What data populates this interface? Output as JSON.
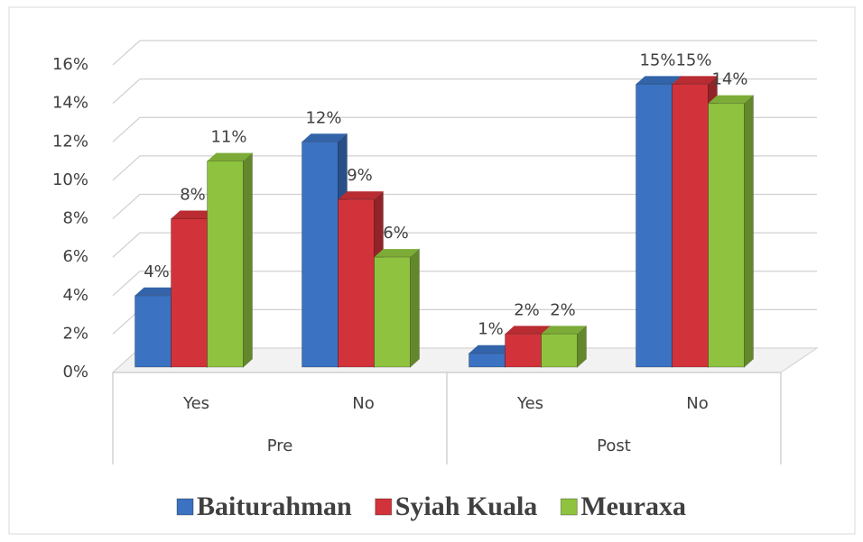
{
  "chart_data": {
    "type": "bar3d",
    "categories": [
      "Yes",
      "No",
      "Yes",
      "No"
    ],
    "groups": [
      "Pre",
      "Post"
    ],
    "series": [
      {
        "name": "Baiturahman",
        "color": "#3b72c2",
        "values": [
          4,
          12,
          1,
          15
        ],
        "value_labels": [
          "4%",
          "12%",
          "1%",
          "15%"
        ]
      },
      {
        "name": "Syiah Kuala",
        "color": "#d2333a",
        "values": [
          8,
          9,
          2,
          15
        ],
        "value_labels": [
          "8%",
          "9%",
          "2%",
          "15%"
        ]
      },
      {
        "name": "Meuraxa",
        "color": "#8fc33f",
        "values": [
          11,
          6,
          2,
          14
        ],
        "value_labels": [
          "11%",
          "6%",
          "2%",
          "14%"
        ]
      }
    ],
    "ylim": [
      0,
      16
    ],
    "yticks": [
      {
        "value": 0,
        "label": "0%"
      },
      {
        "value": 2,
        "label": "2%"
      },
      {
        "value": 4,
        "label": "4%"
      },
      {
        "value": 6,
        "label": "6%"
      },
      {
        "value": 8,
        "label": "8%"
      },
      {
        "value": 10,
        "label": "10%"
      },
      {
        "value": 12,
        "label": "12%"
      },
      {
        "value": 14,
        "label": "14%"
      },
      {
        "value": 16,
        "label": "16%"
      }
    ],
    "grid": true,
    "legend": "bottom"
  }
}
